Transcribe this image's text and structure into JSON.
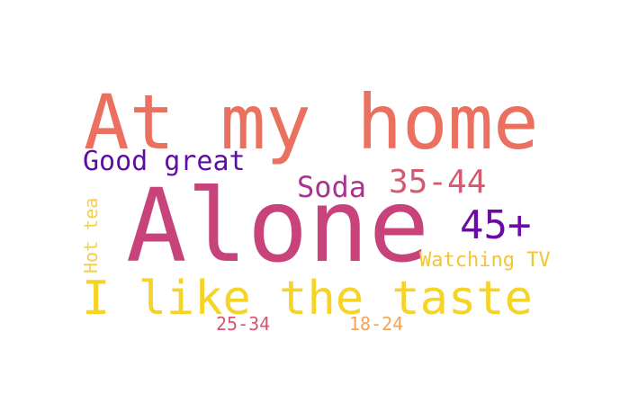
{
  "chart_data": {
    "type": "wordcloud",
    "words": [
      {
        "text": "At my home",
        "color": "#ea7160"
      },
      {
        "text": "Alone",
        "color": "#c8437b"
      },
      {
        "text": "I like the taste",
        "color": "#f5d327"
      },
      {
        "text": "Good great",
        "color": "#5c0fa0"
      },
      {
        "text": "Soda",
        "color": "#a9338d"
      },
      {
        "text": "35-44",
        "color": "#d55a6f"
      },
      {
        "text": "45+",
        "color": "#6a0ba6"
      },
      {
        "text": "Watching TV",
        "color": "#f3c534"
      },
      {
        "text": "Hot tea",
        "color": "#f4cf49"
      },
      {
        "text": "25-34",
        "color": "#d4566f"
      },
      {
        "text": "18-24",
        "color": "#f3a45b"
      }
    ]
  }
}
